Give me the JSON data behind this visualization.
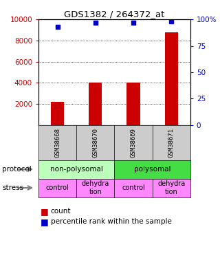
{
  "title": "GDS1382 / 264372_at",
  "samples": [
    "GSM38668",
    "GSM38670",
    "GSM38669",
    "GSM38671"
  ],
  "counts": [
    2200,
    4000,
    4000,
    8800
  ],
  "percentiles": [
    93,
    97,
    97,
    98
  ],
  "ylim_left": [
    0,
    10000
  ],
  "ylim_right": [
    0,
    100
  ],
  "yticks_left": [
    2000,
    4000,
    6000,
    8000,
    10000
  ],
  "yticks_right": [
    0,
    25,
    50,
    75,
    100
  ],
  "bar_color": "#cc0000",
  "dot_color": "#0000cc",
  "protocol_colors": [
    "#bbffbb",
    "#44dd44"
  ],
  "protocol_labels": [
    "non-polysomal",
    "polysomal"
  ],
  "stress_color": "#ff88ff",
  "stress_labels": [
    "control",
    "dehydra\ntion",
    "control",
    "dehydra\ntion"
  ],
  "sample_bg_color": "#cccccc",
  "left_label_color": "#cc0000",
  "right_label_color": "#0000cc",
  "bar_width": 0.35
}
